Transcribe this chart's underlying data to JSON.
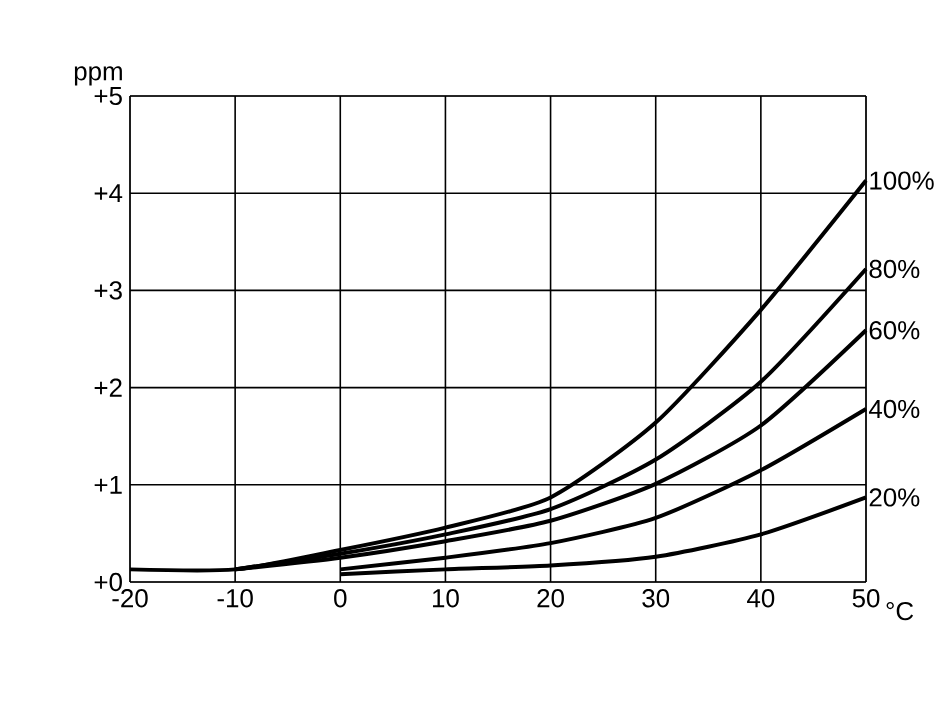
{
  "chart_data": {
    "type": "line",
    "xlabel": "°C",
    "ylabel": "ppm",
    "xlim": [
      -20,
      50
    ],
    "ylim": [
      0,
      5
    ],
    "xticks": [
      -20,
      -10,
      0,
      10,
      20,
      30,
      40,
      50
    ],
    "yticks": [
      {
        "value": 0,
        "label": "+0"
      },
      {
        "value": 1,
        "label": "+1"
      },
      {
        "value": 2,
        "label": "+2"
      },
      {
        "value": 3,
        "label": "+3"
      },
      {
        "value": 4,
        "label": "+4"
      },
      {
        "value": 5,
        "label": "+5"
      }
    ],
    "grid": true,
    "legend": false,
    "marker": "none",
    "line_style": "solid",
    "series": [
      {
        "name": "100%",
        "color": "#000000",
        "x": [
          -20,
          -10,
          0,
          10,
          20,
          30,
          40,
          50
        ],
        "values": [
          0.13,
          0.13,
          0.33,
          0.56,
          0.87,
          1.64,
          2.8,
          4.13
        ]
      },
      {
        "name": "80%",
        "color": "#000000",
        "x": [
          -10,
          0,
          10,
          20,
          30,
          40,
          50
        ],
        "values": [
          0.13,
          0.29,
          0.49,
          0.75,
          1.26,
          2.06,
          3.22
        ]
      },
      {
        "name": "60%",
        "color": "#000000",
        "x": [
          -10,
          0,
          10,
          20,
          30,
          40,
          50
        ],
        "values": [
          0.13,
          0.25,
          0.42,
          0.63,
          1.01,
          1.61,
          2.59
        ]
      },
      {
        "name": "40%",
        "color": "#000000",
        "x": [
          0,
          10,
          20,
          30,
          40,
          50
        ],
        "values": [
          0.13,
          0.25,
          0.4,
          0.66,
          1.15,
          1.78
        ]
      },
      {
        "name": "20%",
        "color": "#000000",
        "x": [
          0,
          10,
          20,
          30,
          40,
          50
        ],
        "values": [
          0.08,
          0.13,
          0.17,
          0.26,
          0.49,
          0.87
        ]
      }
    ]
  }
}
